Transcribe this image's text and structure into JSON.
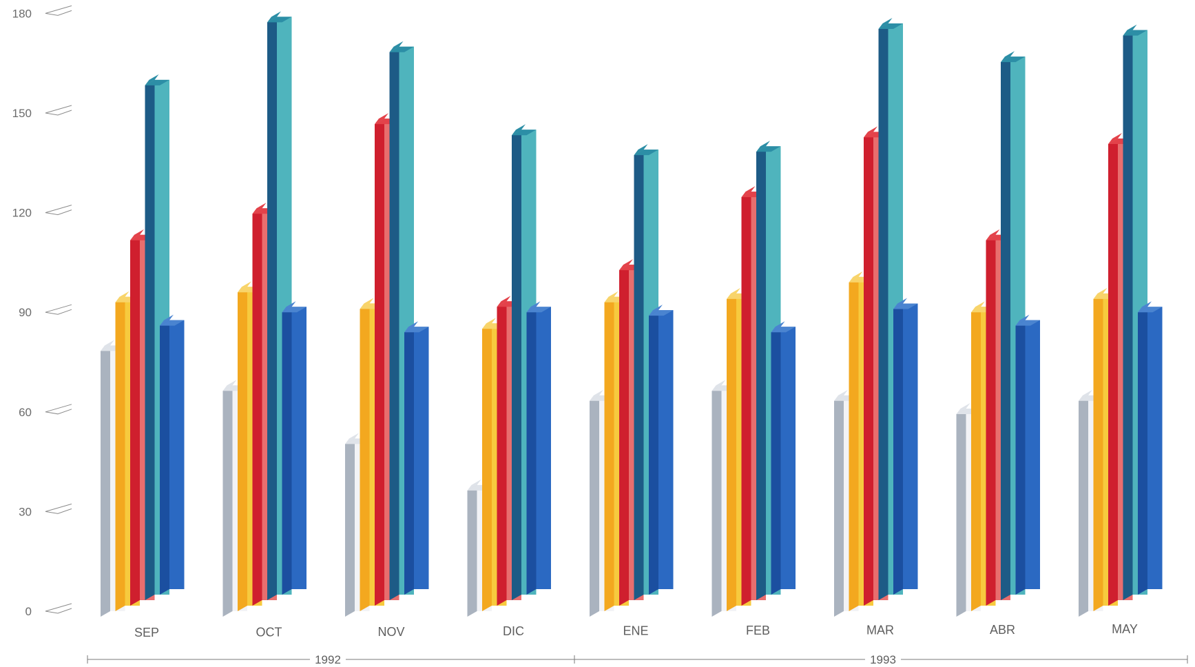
{
  "chart_data": {
    "type": "bar",
    "style": "3d-isometric-grouped",
    "categories": [
      "SEP",
      "OCT",
      "NOV",
      "DIC",
      "ENE",
      "FEB",
      "MAR",
      "ABR",
      "MAY"
    ],
    "series": [
      {
        "values": [
          80,
          68,
          52,
          38,
          65,
          68,
          65,
          61,
          65
        ]
      },
      {
        "values": [
          93,
          96,
          91,
          85,
          93,
          94,
          99,
          90,
          94
        ]
      },
      {
        "values": [
          110,
          118,
          145,
          90,
          101,
          123,
          141,
          110,
          139
        ]
      },
      {
        "values": [
          155,
          174,
          165,
          140,
          134,
          135,
          172,
          162,
          170
        ]
      },
      {
        "values": [
          81,
          85,
          79,
          85,
          84,
          79,
          86,
          81,
          85
        ]
      }
    ],
    "y_ticks": [
      "0",
      "30",
      "60",
      "90",
      "120",
      "150",
      "180"
    ],
    "ylim": [
      0,
      180
    ],
    "year_groups": [
      {
        "label": "1992",
        "from": "SEP",
        "to": "DIC"
      },
      {
        "label": "1993",
        "from": "ENE",
        "to": "MAY"
      }
    ],
    "grid": false,
    "legend": "none",
    "colors": [
      {
        "front": "#f2f3f6",
        "side": "#aab3bf",
        "top": "#dfe3e9"
      },
      {
        "front": "#f7ca3e",
        "side": "#f3a81f",
        "top": "#f8d46a"
      },
      {
        "front": "#e86e6e",
        "side": "#cf1f2e",
        "top": "#e3424a"
      },
      {
        "front": "#4fb4bd",
        "side": "#1d5b86",
        "top": "#2c8ea6"
      },
      {
        "front": "#2b69c2",
        "side": "#1b4fa0",
        "top": "#4a84d0"
      }
    ]
  }
}
